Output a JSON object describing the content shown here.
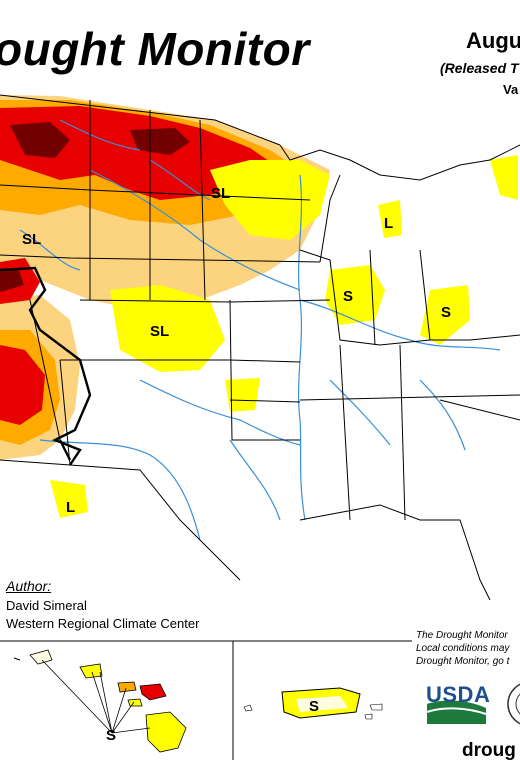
{
  "header": {
    "title": "ought Monitor",
    "date": "Augu",
    "released": "(Released T",
    "valid": "Va"
  },
  "author": {
    "label": "Author:",
    "name": "David Simeral",
    "organization": "Western Regional Climate Center"
  },
  "disclaimer": {
    "line1": "The Drought Monitor",
    "line2": "Local conditions may",
    "line3": "Drought Monitor, go t"
  },
  "footer": {
    "usda": "USDA",
    "url": "droug"
  },
  "map_labels": {
    "sl_north_plains": "SL",
    "sl_northwest": "SL",
    "sl_central": "SL",
    "s_midwest": "S",
    "s_appalachia": "S",
    "l_michigan": "L",
    "l_southwest": "L",
    "s_hawaii": "S",
    "s_puerto_rico": "S"
  },
  "colors": {
    "d0_abnormally_dry": "#ffff00",
    "d1_moderate": "#fcd37f",
    "d2_severe": "#ffaa00",
    "d3_extreme": "#e60000",
    "d4_exceptional": "#730000",
    "rivers": "#3a8fd8",
    "usda_blue": "#1f4f8f",
    "usda_green": "#1e7a3c"
  }
}
